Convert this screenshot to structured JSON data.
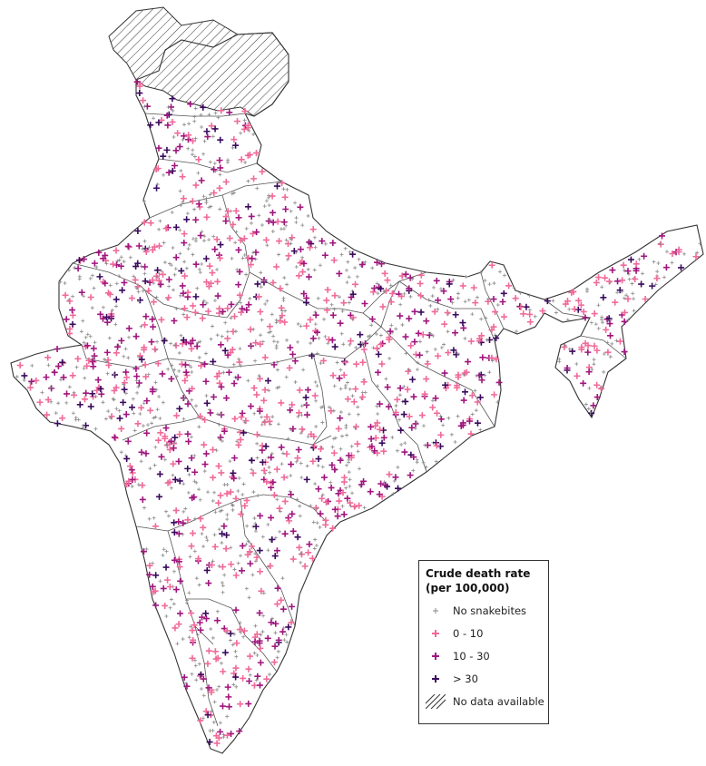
{
  "legend": {
    "title_line1": "Crude death rate",
    "title_line2": "(per 100,000)",
    "items": [
      {
        "label": "No snakebites",
        "color": "#8a8a8a"
      },
      {
        "label": "0 - 10",
        "color": "#f06a9a"
      },
      {
        "label": "10 - 30",
        "color": "#a0167e"
      },
      {
        "label": "> 30",
        "color": "#3a0a5e"
      },
      {
        "label": "No data available",
        "color": "#333333"
      }
    ]
  }
}
